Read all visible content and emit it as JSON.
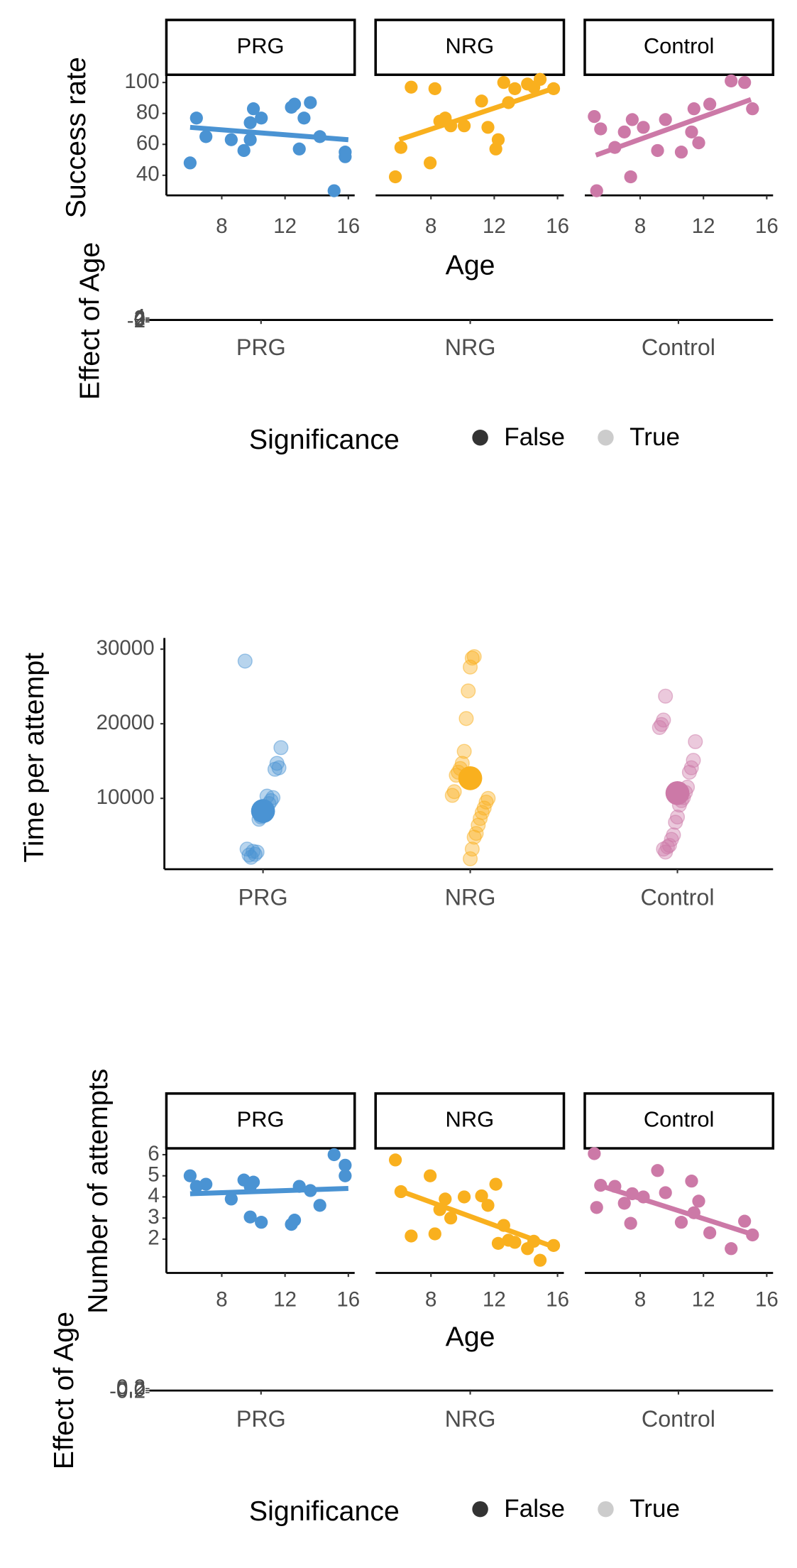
{
  "chart_data": [
    {
      "type": "facet_scatter",
      "y_label": "Success rate",
      "x_label": "Age",
      "xlim": [
        4.5,
        16.4
      ],
      "xticks": [
        8,
        12,
        16
      ],
      "ylim": [
        27,
        105
      ],
      "yticks": [
        40,
        60,
        80,
        100
      ],
      "panels": [
        {
          "title": "PRG",
          "color": "#4a93d3",
          "x": [
            6.0,
            6.4,
            7.0,
            8.6,
            9.4,
            9.8,
            10.0,
            10.5,
            9.8,
            12.4,
            12.6,
            13.2,
            12.9,
            13.6,
            14.2,
            15.1,
            15.8,
            15.8
          ],
          "values": [
            48,
            77,
            65,
            63,
            56,
            74,
            83,
            77,
            63,
            84,
            86,
            77,
            57,
            87,
            65,
            30,
            55,
            52
          ],
          "fit": {
            "x": [
              6,
              16
            ],
            "values": [
              71,
              63
            ]
          }
        },
        {
          "title": "NRG",
          "color": "#f9b01e",
          "x": [
            5.75,
            6.1,
            6.75,
            7.95,
            8.25,
            8.56,
            8.9,
            9.25,
            10.1,
            11.2,
            11.6,
            12.1,
            12.25,
            12.6,
            12.9,
            13.3,
            14.1,
            14.5,
            14.9,
            15.75
          ],
          "values": [
            39,
            58,
            97,
            48,
            96,
            75,
            77,
            72,
            72,
            88,
            71,
            57,
            63,
            100,
            87,
            96,
            99,
            97,
            102,
            96
          ],
          "fit": {
            "x": [
              6,
              15.7
            ],
            "values": [
              63,
              96
            ]
          }
        },
        {
          "title": "Control",
          "color": "#cc79a7",
          "x": [
            5.1,
            5.5,
            5.25,
            6.4,
            7.0,
            7.4,
            7.5,
            8.2,
            9.1,
            9.6,
            10.6,
            11.25,
            11.4,
            11.7,
            12.4,
            13.75,
            14.6,
            15.1
          ],
          "values": [
            78,
            70,
            30,
            58,
            68,
            39,
            76,
            71,
            56,
            76,
            55,
            68,
            83,
            61,
            86,
            101,
            100,
            83
          ],
          "fit": {
            "x": [
              5.2,
              15
            ],
            "values": [
              53,
              89
            ]
          }
        }
      ]
    },
    {
      "type": "effect",
      "y_label": "Effect of Age",
      "categories": [
        "PRG",
        "NRG",
        "Control"
      ],
      "ylim": [
        -2,
        4
      ],
      "yticks": [
        -2,
        0,
        2,
        4
      ],
      "legend": {
        "title": "Significance",
        "entries": [
          {
            "name": "False",
            "color": "#333333"
          },
          {
            "name": "True",
            "color": "#cccccc"
          }
        ]
      }
    },
    {
      "type": "strip",
      "y_label": "Time per attempt",
      "categories": [
        "PRG",
        "NRG",
        "Control"
      ],
      "ylim": [
        500,
        31500
      ],
      "yticks": [
        10000,
        20000,
        30000
      ],
      "groups": [
        {
          "color": "#4a93d3",
          "mean": 8300,
          "values": [
            28400,
            16800,
            14100,
            14700,
            13900,
            10100,
            9700,
            9300,
            10300,
            8800,
            7700,
            7500,
            7200,
            2800,
            2500,
            2900,
            2100,
            2400,
            3200
          ]
        },
        {
          "color": "#f9b01e",
          "mean": 12700,
          "values": [
            29000,
            28800,
            27600,
            24400,
            20700,
            16300,
            14700,
            14000,
            13500,
            13100,
            10900,
            10400,
            10000,
            9500,
            8700,
            8100,
            7300,
            6400,
            5300,
            4800,
            3200,
            1900
          ]
        },
        {
          "color": "#cc79a7",
          "mean": 10700,
          "values": [
            23700,
            20500,
            19900,
            19500,
            17600,
            15100,
            14100,
            13500,
            11500,
            10800,
            10100,
            9700,
            9100,
            7500,
            6800,
            5100,
            4500,
            3700,
            3500,
            2800,
            3200
          ]
        }
      ]
    },
    {
      "type": "facet_scatter",
      "y_label": "Number of attempts",
      "x_label": "Age",
      "xlim": [
        4.5,
        16.4
      ],
      "xticks": [
        8,
        12,
        16
      ],
      "ylim": [
        0.4,
        6.3
      ],
      "yticks": [
        2,
        3,
        4,
        5,
        6
      ],
      "panels": [
        {
          "title": "PRG",
          "color": "#4a93d3",
          "x": [
            6.0,
            6.4,
            7.0,
            8.6,
            9.4,
            9.8,
            10.0,
            10.5,
            9.8,
            12.4,
            12.6,
            12.9,
            13.6,
            14.2,
            15.1,
            15.8,
            15.8
          ],
          "values": [
            5.0,
            4.5,
            4.6,
            3.9,
            4.8,
            3.05,
            4.7,
            2.8,
            4.5,
            2.7,
            2.9,
            4.5,
            4.3,
            3.6,
            6.0,
            5.5,
            5.0
          ],
          "fit": {
            "x": [
              6,
              16
            ],
            "values": [
              4.15,
              4.4
            ]
          }
        },
        {
          "title": "NRG",
          "color": "#f9b01e",
          "x": [
            5.75,
            6.1,
            6.75,
            7.95,
            8.25,
            8.56,
            8.9,
            9.25,
            10.1,
            11.2,
            11.6,
            12.1,
            12.25,
            12.6,
            12.9,
            13.3,
            14.1,
            14.5,
            14.9,
            15.75
          ],
          "values": [
            5.75,
            4.25,
            2.15,
            5.0,
            2.25,
            3.4,
            3.9,
            3.0,
            4.0,
            4.05,
            3.6,
            4.6,
            1.8,
            2.65,
            1.95,
            1.85,
            1.55,
            1.9,
            1.0,
            1.7
          ],
          "fit": {
            "x": [
              6,
              15.7
            ],
            "values": [
              4.3,
              1.65
            ]
          }
        },
        {
          "title": "Control",
          "color": "#cc79a7",
          "x": [
            5.1,
            5.5,
            5.25,
            6.4,
            7.0,
            7.4,
            7.5,
            8.2,
            9.1,
            9.6,
            10.6,
            11.25,
            11.4,
            11.7,
            12.4,
            13.75,
            14.6,
            15.1
          ],
          "values": [
            6.05,
            4.55,
            3.5,
            4.5,
            3.7,
            2.75,
            4.15,
            4.0,
            5.25,
            4.2,
            2.8,
            4.75,
            3.25,
            3.8,
            2.3,
            1.55,
            2.85,
            2.2
          ],
          "fit": {
            "x": [
              5.2,
              15
            ],
            "values": [
              4.6,
              2.25
            ]
          }
        }
      ]
    },
    {
      "type": "effect",
      "y_label": "Effect of Age",
      "categories": [
        "PRG",
        "NRG",
        "Control"
      ],
      "ylim": [
        -0.2,
        0.2
      ],
      "yticks": [
        -0.2,
        {
          "value": 0,
          "label": "0.0"
        },
        {
          "value": 0.2,
          "label": "0.2"
        }
      ],
      "legend": {
        "title": "Significance",
        "entries": [
          {
            "name": "False",
            "color": "#333333"
          },
          {
            "name": "True",
            "color": "#cccccc"
          }
        ]
      }
    }
  ]
}
